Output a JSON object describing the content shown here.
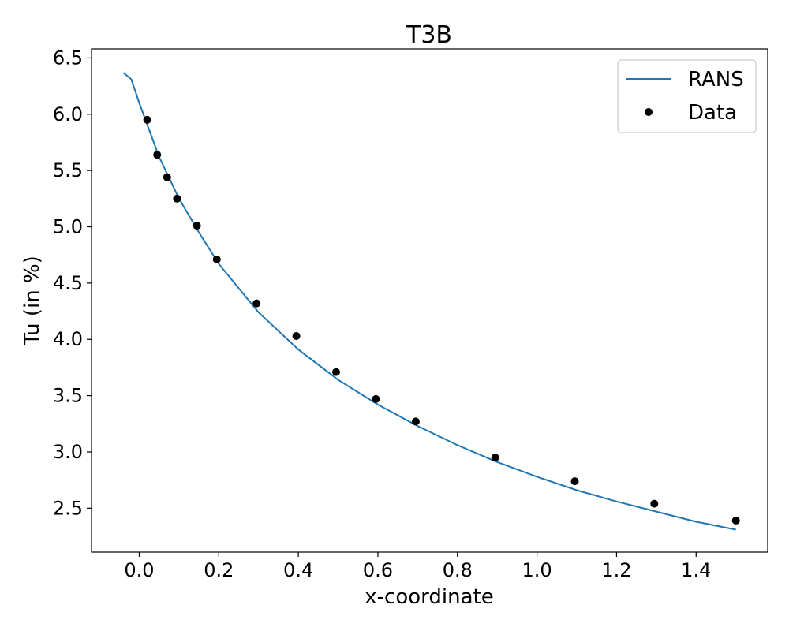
{
  "chart_data": {
    "type": "line",
    "title": "T3B",
    "xlabel": "x-coordinate",
    "ylabel": "Tu (in %)",
    "xlim": [
      -0.12,
      1.58
    ],
    "ylim": [
      2.11,
      6.58
    ],
    "xticks": [
      0.0,
      0.2,
      0.4,
      0.6,
      0.8,
      1.0,
      1.2,
      1.4
    ],
    "xtick_labels": [
      "0.0",
      "0.2",
      "0.4",
      "0.6",
      "0.8",
      "1.0",
      "1.2",
      "1.4"
    ],
    "yticks": [
      2.5,
      3.0,
      3.5,
      4.0,
      4.5,
      5.0,
      5.5,
      6.0,
      6.5
    ],
    "ytick_labels": [
      "2.5",
      "3.0",
      "3.5",
      "4.0",
      "4.5",
      "5.0",
      "5.5",
      "6.0",
      "6.5"
    ],
    "grid": false,
    "legend_position": "top-right",
    "series": [
      {
        "name": "RANS",
        "kind": "line",
        "color": "#1f77b4",
        "x": [
          -0.04,
          -0.02,
          0.0,
          0.05,
          0.1,
          0.15,
          0.2,
          0.3,
          0.4,
          0.5,
          0.6,
          0.7,
          0.8,
          0.9,
          1.0,
          1.1,
          1.2,
          1.3,
          1.4,
          1.5
        ],
        "y": [
          6.37,
          6.31,
          6.1,
          5.62,
          5.25,
          4.95,
          4.67,
          4.24,
          3.91,
          3.64,
          3.42,
          3.23,
          3.06,
          2.91,
          2.78,
          2.66,
          2.56,
          2.47,
          2.38,
          2.31
        ]
      },
      {
        "name": "Data",
        "kind": "scatter",
        "color": "#000000",
        "x": [
          0.02,
          0.045,
          0.07,
          0.095,
          0.145,
          0.195,
          0.295,
          0.395,
          0.495,
          0.595,
          0.695,
          0.895,
          1.095,
          1.295,
          1.5
        ],
        "y": [
          5.95,
          5.64,
          5.44,
          5.25,
          5.01,
          4.71,
          4.32,
          4.03,
          3.71,
          3.47,
          3.27,
          2.95,
          2.74,
          2.54,
          2.39
        ]
      }
    ]
  }
}
